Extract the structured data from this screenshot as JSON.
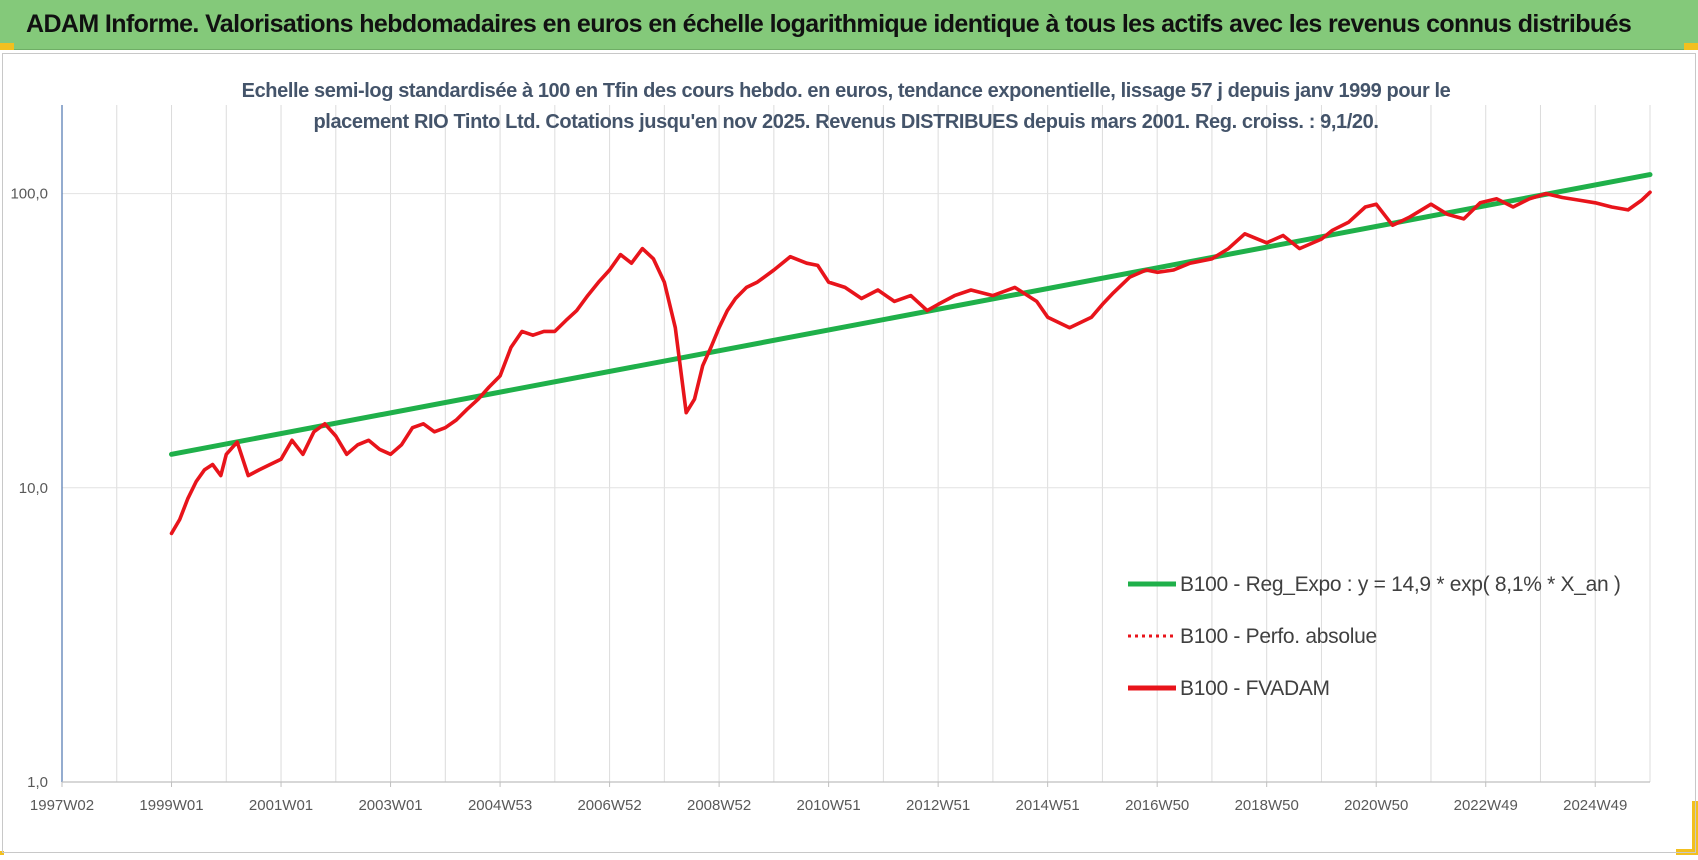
{
  "banner": {
    "title": "ADAM Informe. Valorisations hebdomadaires en euros en échelle logarithmique identique à tous les actifs avec les revenus connus distribués"
  },
  "colors": {
    "banner_bg": "#84c97a",
    "accent_corner": "#f2c01f",
    "trend_green": "#1fb04a",
    "series_red": "#e8141b",
    "title_text": "#44546a"
  },
  "chart_data": {
    "type": "line",
    "title_lines": [
      "Echelle semi-log standardisée à 100 en Tfin des cours hebdo. en euros, tendance exponentielle, lissage 57 j depuis janv 1999 pour le",
      "placement RIO Tinto Ltd. Cotations jusqu'en nov 2025. Revenus DISTRIBUES depuis mars 2001. Reg. croiss. : 9,1/20."
    ],
    "y_scale": "log",
    "ylim": [
      1,
      200
    ],
    "y_ticks": [
      {
        "value": 1,
        "label": "1,0"
      },
      {
        "value": 10,
        "label": "10,0"
      },
      {
        "value": 100,
        "label": "100,0"
      }
    ],
    "xlim": [
      1997.0,
      2026.0
    ],
    "x_ticks": [
      {
        "value": 1997.0,
        "label": "1997W02"
      },
      {
        "value": 1999.0,
        "label": "1999W01"
      },
      {
        "value": 2001.0,
        "label": "2001W01"
      },
      {
        "value": 2003.0,
        "label": "2003W01"
      },
      {
        "value": 2005.0,
        "label": "2004W53"
      },
      {
        "value": 2007.0,
        "label": "2006W52"
      },
      {
        "value": 2009.0,
        "label": "2008W52"
      },
      {
        "value": 2011.0,
        "label": "2010W51"
      },
      {
        "value": 2013.0,
        "label": "2012W51"
      },
      {
        "value": 2015.0,
        "label": "2014W51"
      },
      {
        "value": 2017.0,
        "label": "2016W50"
      },
      {
        "value": 2019.0,
        "label": "2018W50"
      },
      {
        "value": 2021.0,
        "label": "2020W50"
      },
      {
        "value": 2023.0,
        "label": "2022W49"
      },
      {
        "value": 2025.0,
        "label": "2024W49"
      }
    ],
    "grid": "vertical",
    "legend_position": "bottom-right",
    "series": [
      {
        "name": "B100 - Reg_Expo : y = 14,9 * exp( 8,1% *  X_an )",
        "style": "solid",
        "color": "#1fb04a",
        "x": [
          1999.0,
          2026.0
        ],
        "y": [
          13.0,
          116.0
        ]
      },
      {
        "name": "B100 - Perfo. absolue",
        "style": "dotted",
        "color": "#e8141b",
        "x": [],
        "y": []
      },
      {
        "name": "B100 - FVADAM",
        "style": "solid",
        "color": "#e8141b",
        "x": [
          1999.0,
          1999.15,
          1999.3,
          1999.45,
          1999.6,
          1999.75,
          1999.9,
          2000.0,
          2000.2,
          2000.4,
          2000.6,
          2000.8,
          2001.0,
          2001.2,
          2001.4,
          2001.6,
          2001.8,
          2002.0,
          2002.2,
          2002.4,
          2002.6,
          2002.8,
          2003.0,
          2003.2,
          2003.4,
          2003.6,
          2003.8,
          2004.0,
          2004.2,
          2004.4,
          2004.6,
          2004.8,
          2005.0,
          2005.2,
          2005.4,
          2005.6,
          2005.8,
          2006.0,
          2006.2,
          2006.4,
          2006.6,
          2006.8,
          2007.0,
          2007.2,
          2007.4,
          2007.6,
          2007.8,
          2008.0,
          2008.2,
          2008.4,
          2008.55,
          2008.7,
          2008.85,
          2009.0,
          2009.15,
          2009.3,
          2009.5,
          2009.7,
          2010.0,
          2010.3,
          2010.6,
          2010.8,
          2011.0,
          2011.3,
          2011.6,
          2011.9,
          2012.2,
          2012.5,
          2012.8,
          2013.0,
          2013.3,
          2013.6,
          2014.0,
          2014.4,
          2014.8,
          2015.0,
          2015.4,
          2015.8,
          2016.0,
          2016.2,
          2016.5,
          2016.8,
          2017.0,
          2017.3,
          2017.6,
          2018.0,
          2018.3,
          2018.6,
          2019.0,
          2019.3,
          2019.6,
          2020.0,
          2020.2,
          2020.5,
          2020.8,
          2021.0,
          2021.3,
          2021.6,
          2022.0,
          2022.3,
          2022.6,
          2022.9,
          2023.2,
          2023.5,
          2023.8,
          2024.1,
          2024.4,
          2024.7,
          2025.0,
          2025.3,
          2025.6,
          2025.85,
          2026.0
        ],
        "y": [
          7.0,
          7.8,
          9.2,
          10.5,
          11.5,
          12.0,
          11.0,
          13.0,
          14.3,
          11.0,
          11.5,
          12.0,
          12.5,
          14.5,
          13.0,
          15.5,
          16.5,
          15.0,
          13.0,
          14.0,
          14.5,
          13.5,
          13.0,
          14.0,
          16.0,
          16.5,
          15.5,
          16.0,
          17.0,
          18.5,
          20.0,
          22.0,
          24.0,
          30.0,
          34.0,
          33.0,
          34.0,
          34.0,
          37.0,
          40.0,
          45.0,
          50.0,
          55.0,
          62.0,
          58.0,
          65.0,
          60.0,
          50.0,
          35.0,
          18.0,
          20.0,
          26.0,
          30.0,
          35.0,
          40.0,
          44.0,
          48.0,
          50.0,
          55.0,
          61.0,
          58.0,
          57.0,
          50.0,
          48.0,
          44.0,
          47.0,
          43.0,
          45.0,
          40.0,
          42.0,
          45.0,
          47.0,
          45.0,
          48.0,
          43.0,
          38.0,
          35.0,
          38.0,
          42.0,
          46.0,
          52.0,
          55.0,
          54.0,
          55.0,
          58.0,
          60.0,
          65.0,
          73.0,
          68.0,
          72.0,
          65.0,
          70.0,
          75.0,
          80.0,
          90.0,
          92.0,
          78.0,
          83.0,
          92.0,
          85.0,
          82.0,
          93.0,
          96.0,
          90.0,
          96.0,
          100.0,
          97.0,
          95.0,
          93.0,
          90.0,
          88.0,
          95.0,
          101.0
        ]
      }
    ]
  }
}
